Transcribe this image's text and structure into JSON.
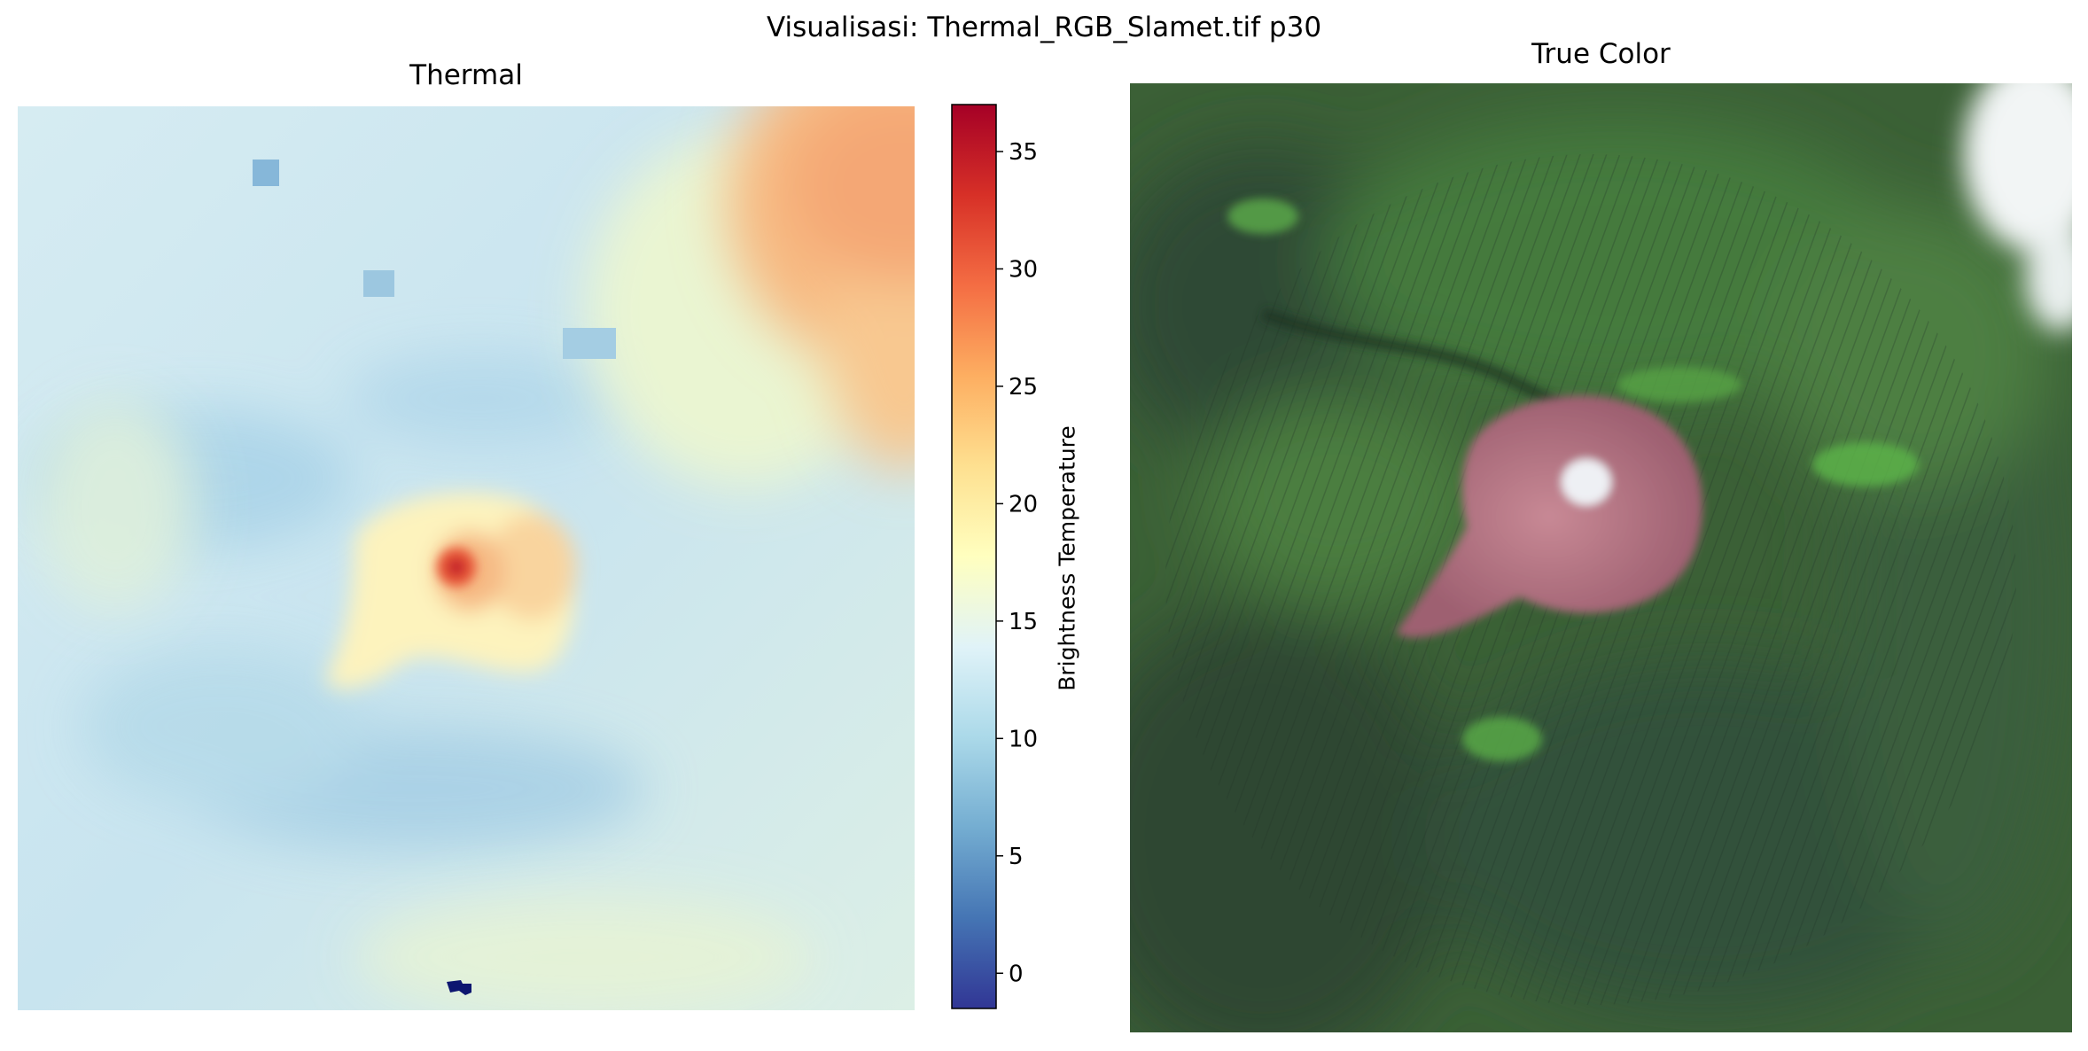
{
  "figure": {
    "suptitle": "Visualisasi: Thermal_RGB_Slamet.tif p30"
  },
  "chart_data": [
    {
      "type": "heatmap",
      "title": "Thermal",
      "colormap": "RdYlBu_r",
      "colorbar": {
        "label": "Brightness Temperature",
        "vmin": -1.5,
        "vmax": 37,
        "ticks": [
          0,
          5,
          10,
          15,
          20,
          25,
          30,
          35
        ],
        "tick_labels": [
          "0",
          "5",
          "10",
          "15",
          "20",
          "25",
          "30",
          "35"
        ],
        "orientation": "vertical",
        "placement": "right of thermal panel"
      },
      "axes_visible": false,
      "features": [
        {
          "name": "summit hotspot",
          "value": 36
        },
        {
          "name": "summit crater area",
          "value": 26
        },
        {
          "name": "warm region upper-right corner",
          "value": 29
        },
        {
          "name": "cold patch bottom-center",
          "value": -1
        }
      ],
      "background_range": [
        12,
        22
      ]
    },
    {
      "type": "image",
      "title": "True Color",
      "axes_visible": false,
      "colors": {
        "vegetation": "#3f6b38",
        "dark_vegetation": "#2a3f2c",
        "summit_rock": "#b37a86",
        "summit_crater": "#eef0f4",
        "clouds": "#f4f6f6"
      }
    }
  ]
}
